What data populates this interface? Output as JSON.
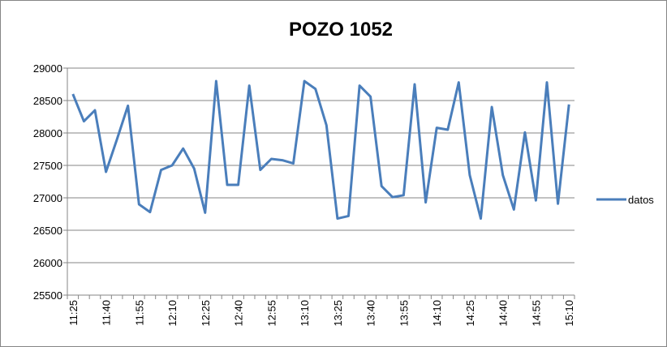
{
  "chart_data": {
    "type": "line",
    "title": "POZO 1052",
    "categories": [
      "11:25",
      null,
      null,
      "11:40",
      null,
      null,
      "11:55",
      null,
      null,
      "12:10",
      null,
      null,
      "12:25",
      null,
      null,
      "12:40",
      null,
      null,
      "12:55",
      null,
      null,
      "13:10",
      null,
      null,
      "13:25",
      null,
      null,
      "13:40",
      null,
      null,
      "13:55",
      null,
      null,
      "14:10",
      null,
      null,
      "14:25",
      null,
      null,
      "14:40",
      null,
      null,
      "14:55",
      null,
      null,
      "15:10"
    ],
    "series": [
      {
        "name": "datos",
        "color": "#4a7ebb",
        "values": [
          28600,
          28180,
          28350,
          27400,
          27900,
          28420,
          26900,
          26780,
          27430,
          27500,
          27760,
          27450,
          26770,
          28800,
          27200,
          27200,
          28730,
          27430,
          27600,
          27580,
          27530,
          28800,
          28680,
          28120,
          26680,
          26720,
          28730,
          28560,
          27180,
          27010,
          27040,
          28750,
          26930,
          28080,
          28050,
          28780,
          27350,
          26680,
          28400,
          27350,
          26820,
          28010,
          26960,
          28780,
          26910,
          28440
        ]
      }
    ],
    "ylim": [
      25500,
      29000
    ],
    "yticks": [
      25500,
      26000,
      26500,
      27000,
      27500,
      28000,
      28500,
      29000
    ],
    "grid": true,
    "legend": "right"
  }
}
